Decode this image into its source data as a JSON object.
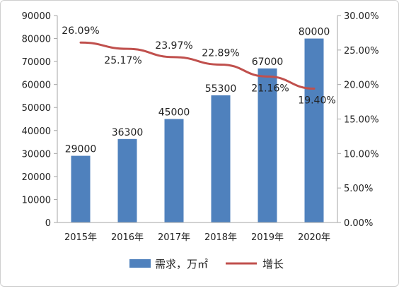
{
  "chart_data": {
    "type": "bar",
    "categories": [
      "2015年",
      "2016年",
      "2017年",
      "2018年",
      "2019年",
      "2020年"
    ],
    "series": [
      {
        "name": "需求，万㎡",
        "type": "bar",
        "axis": "left",
        "values": [
          29000,
          36300,
          45000,
          55300,
          67000,
          80000
        ],
        "labels": [
          "29000",
          "36300",
          "45000",
          "55300",
          "67000",
          "80000"
        ],
        "color": "#4f81bd"
      },
      {
        "name": "增长",
        "type": "line",
        "axis": "right",
        "values": [
          26.09,
          25.17,
          23.97,
          22.89,
          21.16,
          19.4
        ],
        "labels": [
          "26.09%",
          "25.17%",
          "23.97%",
          "22.89%",
          "21.16%",
          "19.40%"
        ],
        "color": "#c0504d"
      }
    ],
    "left_axis": {
      "range": [
        0,
        90000
      ],
      "ticks": [
        "0",
        "10000",
        "20000",
        "30000",
        "40000",
        "50000",
        "60000",
        "70000",
        "80000",
        "90000"
      ]
    },
    "right_axis": {
      "range": [
        0,
        30
      ],
      "ticks": [
        "0.00%",
        "5.00%",
        "10.00%",
        "15.00%",
        "20.00%",
        "25.00%",
        "30.00%"
      ]
    },
    "grid": false,
    "legend_position": "bottom"
  }
}
